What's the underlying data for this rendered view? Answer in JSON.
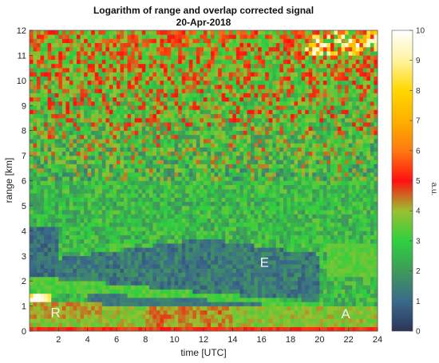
{
  "chart_data": {
    "type": "heatmap",
    "title": "Logarithm of range and overlap corrected signal",
    "subtitle": "20-Apr-2018",
    "xlabel": "time [UTC]",
    "ylabel": "range [km]",
    "xlim": [
      0,
      24
    ],
    "ylim": [
      0,
      12
    ],
    "x_ticks": [
      "2",
      "4",
      "6",
      "8",
      "10",
      "12",
      "14",
      "16",
      "18",
      "20",
      "22",
      "24"
    ],
    "y_ticks": [
      "0",
      "1",
      "2",
      "3",
      "4",
      "5",
      "6",
      "7",
      "8",
      "9",
      "10",
      "11",
      "12"
    ],
    "colorbar": {
      "label": "a.u.",
      "range": [
        0,
        10
      ],
      "ticks": [
        "0",
        "1",
        "2",
        "3",
        "4",
        "5",
        "6",
        "7",
        "8",
        "9",
        "10"
      ],
      "colormap_stops": [
        {
          "value": 0,
          "color": "#2c3458"
        },
        {
          "value": 1,
          "color": "#3b6a8a"
        },
        {
          "value": 2,
          "color": "#3f9a5a"
        },
        {
          "value": 3,
          "color": "#2fd040"
        },
        {
          "value": 4,
          "color": "#9ac030"
        },
        {
          "value": 5,
          "color": "#ff1010"
        },
        {
          "value": 6,
          "color": "#ff7a10"
        },
        {
          "value": 7,
          "color": "#ffb000"
        },
        {
          "value": 8,
          "color": "#ffd800"
        },
        {
          "value": 9,
          "color": "#fff3a0"
        },
        {
          "value": 10,
          "color": "#ffffff"
        }
      ]
    },
    "annotations": [
      {
        "text": "R",
        "x": 1.8,
        "y": 0.75
      },
      {
        "text": "E",
        "x": 16.2,
        "y": 2.75
      },
      {
        "text": "A",
        "x": 21.8,
        "y": 0.7
      }
    ],
    "grid": false
  }
}
